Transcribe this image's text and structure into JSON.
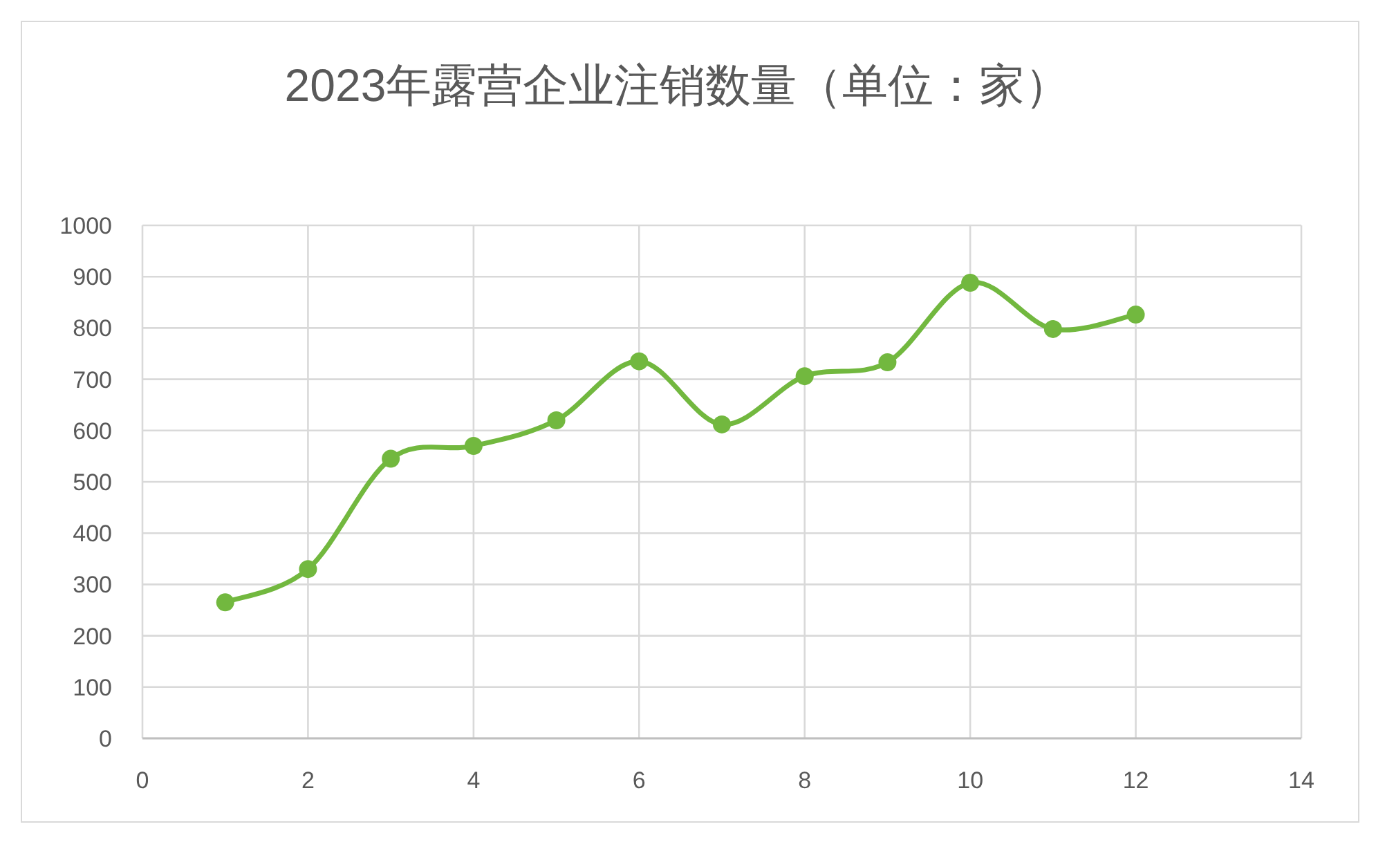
{
  "chart_data": {
    "type": "line",
    "title": "2023年露营企业注销数量（单位：家）",
    "x": [
      1,
      2,
      3,
      4,
      5,
      6,
      7,
      8,
      9,
      10,
      11,
      12
    ],
    "series": [
      {
        "color": "#72b83f",
        "values": [
          265,
          330,
          545,
          570,
          620,
          735,
          612,
          706,
          733,
          888,
          798,
          826
        ]
      }
    ],
    "xlim": [
      0,
      14
    ],
    "xticks": [
      0,
      2,
      4,
      6,
      8,
      10,
      12,
      14
    ],
    "ylim": [
      0,
      1000
    ],
    "yticks": [
      0,
      100,
      200,
      300,
      400,
      500,
      600,
      700,
      800,
      900,
      1000
    ],
    "grid": true,
    "marker": "circle"
  }
}
